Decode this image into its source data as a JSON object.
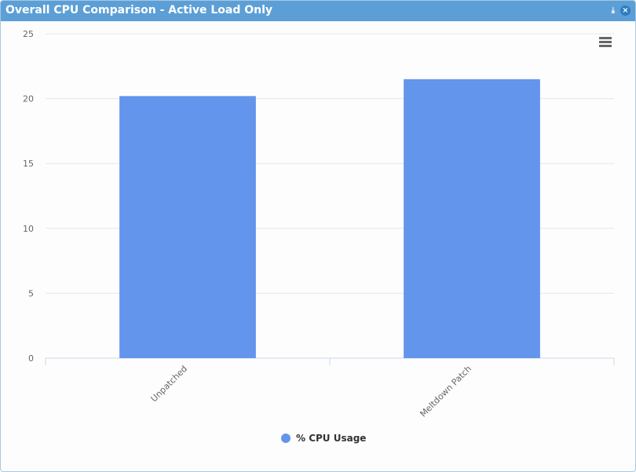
{
  "chart_data": {
    "type": "bar",
    "title": "Overall CPU Comparison - Active Load Only",
    "categories": [
      "Unpatched",
      "Meltdown Patch"
    ],
    "series": [
      {
        "name": "% CPU Usage",
        "color": "#6495ed",
        "values": [
          20.2,
          21.5
        ]
      }
    ],
    "ylim": [
      0,
      25
    ],
    "yticks": [
      0,
      5,
      10,
      15,
      20,
      25
    ],
    "grid": true,
    "legend": "bottom"
  }
}
